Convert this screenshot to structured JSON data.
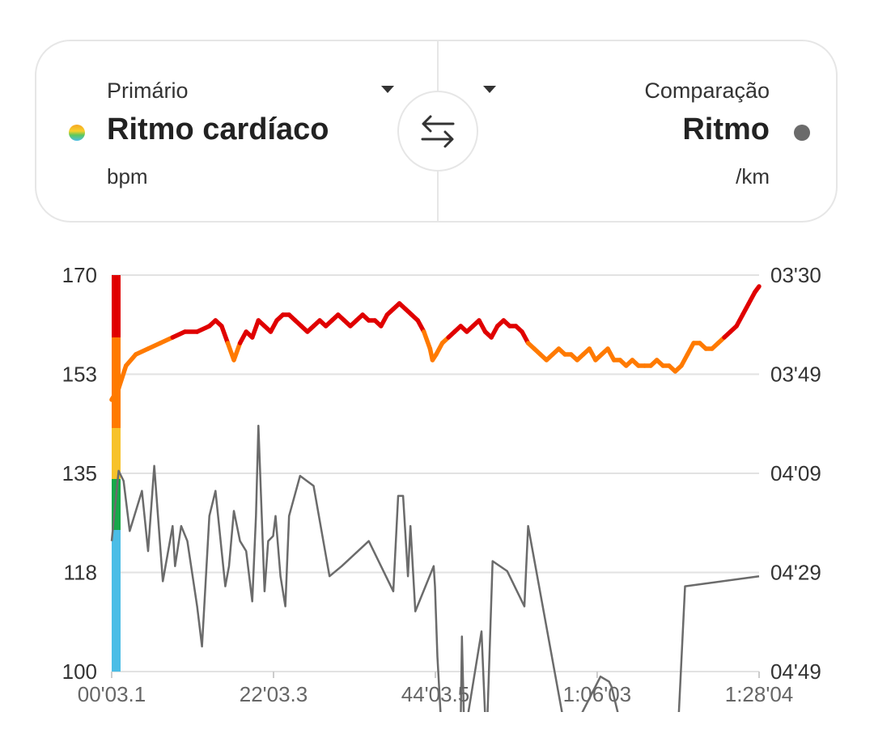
{
  "selector": {
    "primary": {
      "label": "Primário",
      "metric": "Ritmo cardíaco",
      "unit": "bpm",
      "dot_color": "#f5a623"
    },
    "comparison": {
      "label": "Comparação",
      "metric": "Ritmo",
      "unit": "/km",
      "dot_color": "#6b6b6b"
    },
    "swap_icon": "swap-arrows-icon"
  },
  "chart_data": {
    "type": "line",
    "x_ticks": [
      "00'03.1",
      "22'03.3",
      "44'03.5",
      "1:06'03",
      "1:28'04"
    ],
    "x_tick_seconds": [
      3.1,
      1323.3,
      2643.5,
      3963,
      5284
    ],
    "y_left_ticks": [
      "170",
      "153",
      "135",
      "118",
      "100"
    ],
    "y_left_range": [
      100,
      170
    ],
    "y_right_ticks": [
      "03'30",
      "03'49",
      "04'09",
      "04'29",
      "04'49"
    ],
    "y_right_range_seconds": [
      210,
      289
    ],
    "grid": "horizontal",
    "hr_zones": [
      {
        "from": 100,
        "to": 125,
        "color": "#4bbde6"
      },
      {
        "from": 125,
        "to": 134,
        "color": "#17a84a"
      },
      {
        "from": 134,
        "to": 143,
        "color": "#f7c22a"
      },
      {
        "from": 143,
        "to": 159,
        "color": "#ff7a00"
      },
      {
        "from": 159,
        "to": 170,
        "color": "#e00000"
      }
    ],
    "series": [
      {
        "axis": "left",
        "x": [
          3,
          60,
          120,
          200,
          300,
          400,
          500,
          600,
          700,
          800,
          850,
          900,
          950,
          1000,
          1050,
          1100,
          1150,
          1200,
          1250,
          1300,
          1350,
          1400,
          1450,
          1500,
          1550,
          1600,
          1650,
          1700,
          1750,
          1800,
          1850,
          1900,
          1950,
          2000,
          2050,
          2100,
          2150,
          2200,
          2250,
          2300,
          2350,
          2400,
          2450,
          2500,
          2550,
          2600,
          2620,
          2650,
          2700,
          2750,
          2800,
          2850,
          2900,
          2950,
          3000,
          3050,
          3100,
          3150,
          3200,
          3250,
          3300,
          3350,
          3400,
          3450,
          3500,
          3550,
          3600,
          3650,
          3700,
          3750,
          3800,
          3850,
          3900,
          3950,
          4000,
          4050,
          4100,
          4150,
          4200,
          4250,
          4300,
          4350,
          4400,
          4450,
          4500,
          4550,
          4600,
          4650,
          4700,
          4750,
          4800,
          4850,
          4900,
          4950,
          5000,
          5050,
          5100,
          5150,
          5200,
          5250,
          5284
        ],
        "values": [
          148,
          150,
          154,
          156,
          157,
          158,
          159,
          160,
          160,
          161,
          162,
          161,
          158,
          155,
          158,
          160,
          159,
          162,
          161,
          160,
          162,
          163,
          163,
          162,
          161,
          160,
          161,
          162,
          161,
          162,
          163,
          162,
          161,
          162,
          163,
          162,
          162,
          161,
          163,
          164,
          165,
          164,
          163,
          162,
          160,
          157,
          155,
          156,
          158,
          159,
          160,
          161,
          160,
          161,
          162,
          160,
          159,
          161,
          162,
          161,
          161,
          160,
          158,
          157,
          156,
          155,
          156,
          157,
          156,
          156,
          155,
          156,
          157,
          155,
          156,
          157,
          155,
          155,
          154,
          155,
          154,
          154,
          154,
          155,
          154,
          154,
          153,
          154,
          156,
          158,
          158,
          157,
          157,
          158,
          159,
          160,
          161,
          163,
          165,
          167,
          168
        ]
      },
      {
        "axis": "right",
        "x": [
          3,
          60,
          100,
          150,
          250,
          300,
          350,
          420,
          500,
          520,
          570,
          620,
          700,
          740,
          800,
          850,
          900,
          930,
          960,
          1000,
          1050,
          1100,
          1140,
          1150,
          1180,
          1200,
          1250,
          1280,
          1320,
          1340,
          1380,
          1420,
          1450,
          1540,
          1650,
          1780,
          1880,
          2100,
          2300,
          2340,
          2380,
          2420,
          2440,
          2480,
          2630,
          2640,
          2660,
          2690,
          2750,
          2850,
          2860,
          2880,
          2920,
          3020,
          3060,
          3110,
          3230,
          3370,
          3400,
          3720,
          3990,
          4060,
          4080,
          4160,
          4380,
          4610,
          4680,
          5284
        ],
        "values": [
          263,
          249,
          251,
          261,
          253,
          265,
          248,
          271,
          260,
          268,
          260,
          263,
          276,
          284,
          258,
          253,
          265,
          272,
          268,
          257,
          263,
          265,
          273,
          275,
          258,
          240,
          273,
          263,
          262,
          258,
          270,
          276,
          258,
          250,
          252,
          270,
          268,
          263,
          273,
          254,
          254,
          270,
          260,
          277,
          268,
          272,
          286,
          299,
          302,
          299,
          282,
          302,
          296,
          281,
          304,
          267,
          269,
          276,
          260,
          303,
          290,
          291,
          292,
          300,
          311,
          307,
          272,
          270
        ]
      }
    ]
  }
}
